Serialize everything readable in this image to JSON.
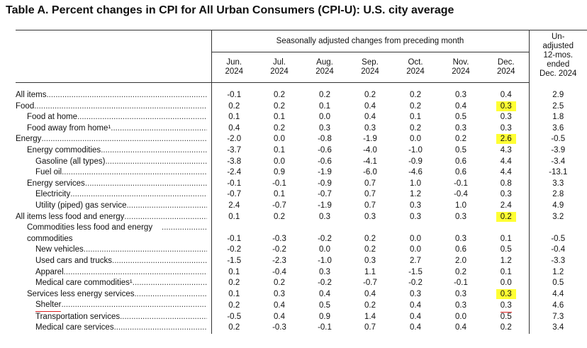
{
  "title": "Table A. Percent changes in CPI for All Urban Consumers (CPI-U): U.S. city average",
  "header": {
    "group": "Seasonally adjusted changes from preceding month",
    "columns": [
      "Jun.\n2024",
      "Jul.\n2024",
      "Aug.\n2024",
      "Sep.\n2024",
      "Oct.\n2024",
      "Nov.\n2024",
      "Dec.\n2024"
    ],
    "unadjusted": "Un-\nadjusted\n12-mos.\nended\nDec. 2024"
  },
  "table": {
    "rows": [
      {
        "label": "All items",
        "values": [
          "-0.1",
          "0.2",
          "0.2",
          "0.2",
          "0.2",
          "0.3",
          "0.4",
          "2.9"
        ]
      },
      {
        "label": "Food",
        "values": [
          "0.2",
          "0.2",
          "0.1",
          "0.4",
          "0.2",
          "0.4",
          "0.3",
          "2.5"
        ]
      },
      {
        "label": "Food at home",
        "values": [
          "0.1",
          "0.1",
          "0.0",
          "0.4",
          "0.1",
          "0.5",
          "0.3",
          "1.8"
        ]
      },
      {
        "label": "Food away from home¹",
        "values": [
          "0.4",
          "0.2",
          "0.3",
          "0.3",
          "0.2",
          "0.3",
          "0.3",
          "3.6"
        ]
      },
      {
        "label": "Energy",
        "values": [
          "-2.0",
          "0.0",
          "-0.8",
          "-1.9",
          "0.0",
          "0.2",
          "2.6",
          "-0.5"
        ]
      },
      {
        "label": "Energy commodities",
        "values": [
          "-3.7",
          "0.1",
          "-0.6",
          "-4.0",
          "-1.0",
          "0.5",
          "4.3",
          "-3.9"
        ]
      },
      {
        "label": "Gasoline (all types)",
        "values": [
          "-3.8",
          "0.0",
          "-0.6",
          "-4.1",
          "-0.9",
          "0.6",
          "4.4",
          "-3.4"
        ]
      },
      {
        "label": "Fuel oil",
        "values": [
          "-2.4",
          "0.9",
          "-1.9",
          "-6.0",
          "-4.6",
          "0.6",
          "4.4",
          "-13.1"
        ]
      },
      {
        "label": "Energy services",
        "values": [
          "-0.1",
          "-0.1",
          "-0.9",
          "0.7",
          "1.0",
          "-0.1",
          "0.8",
          "3.3"
        ]
      },
      {
        "label": "Electricity",
        "values": [
          "-0.7",
          "0.1",
          "-0.7",
          "0.7",
          "1.2",
          "-0.4",
          "0.3",
          "2.8"
        ]
      },
      {
        "label": "Utility (piped) gas service",
        "values": [
          "2.4",
          "-0.7",
          "-1.9",
          "0.7",
          "0.3",
          "1.0",
          "2.4",
          "4.9"
        ]
      },
      {
        "label": "All items less food and energy",
        "values": [
          "0.1",
          "0.2",
          "0.3",
          "0.3",
          "0.3",
          "0.3",
          "0.2",
          "3.2"
        ]
      },
      {
        "label": "Commodities less food and energy commodities",
        "values": [
          "-0.1",
          "-0.3",
          "-0.2",
          "0.2",
          "0.0",
          "0.3",
          "0.1",
          "-0.5"
        ]
      },
      {
        "label": "New vehicles",
        "values": [
          "-0.2",
          "-0.2",
          "0.0",
          "0.2",
          "0.0",
          "0.6",
          "0.5",
          "-0.4"
        ]
      },
      {
        "label": "Used cars and trucks",
        "values": [
          "-1.5",
          "-2.3",
          "-1.0",
          "0.3",
          "2.7",
          "2.0",
          "1.2",
          "-3.3"
        ]
      },
      {
        "label": "Apparel",
        "values": [
          "0.1",
          "-0.4",
          "0.3",
          "1.1",
          "-1.5",
          "0.2",
          "0.1",
          "1.2"
        ]
      },
      {
        "label": "Medical care commodities¹",
        "values": [
          "0.2",
          "0.2",
          "-0.2",
          "-0.7",
          "-0.2",
          "-0.1",
          "0.0",
          "0.5"
        ]
      },
      {
        "label": "Services less energy services",
        "values": [
          "0.1",
          "0.3",
          "0.4",
          "0.4",
          "0.3",
          "0.3",
          "0.3",
          "4.4"
        ]
      },
      {
        "label": "Shelter",
        "values": [
          "0.2",
          "0.4",
          "0.5",
          "0.2",
          "0.4",
          "0.3",
          "0.3",
          "4.6"
        ]
      },
      {
        "label": "Transportation services",
        "values": [
          "-0.5",
          "0.4",
          "0.9",
          "1.4",
          "0.4",
          "0.0",
          "0.5",
          "7.3"
        ]
      },
      {
        "label": "Medical care services",
        "values": [
          "0.2",
          "-0.3",
          "-0.1",
          "0.7",
          "0.4",
          "0.4",
          "0.2",
          "3.4"
        ]
      }
    ]
  }
}
